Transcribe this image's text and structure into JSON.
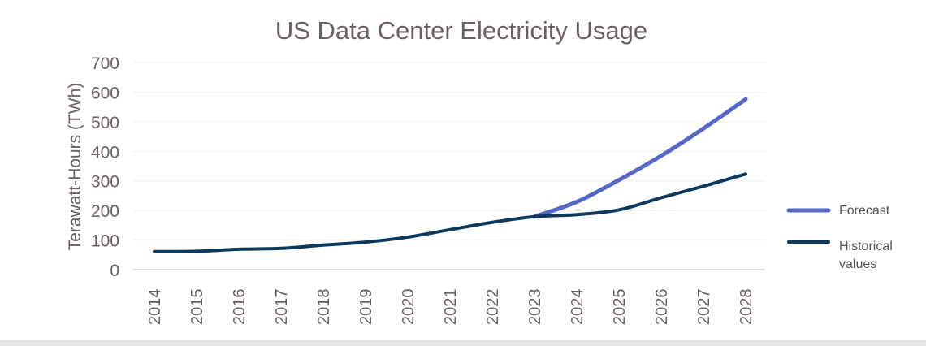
{
  "chart_data": {
    "type": "line",
    "title": "US Data Center Electricity Usage",
    "xlabel": "",
    "ylabel": "Terawatt-Hours (TWh)",
    "ylim": [
      0,
      700
    ],
    "yticks": [
      0,
      100,
      200,
      300,
      400,
      500,
      600,
      700
    ],
    "categories": [
      "2014",
      "2015",
      "2016",
      "2017",
      "2018",
      "2019",
      "2020",
      "2021",
      "2022",
      "2023",
      "2024",
      "2025",
      "2026",
      "2027",
      "2028"
    ],
    "grid": true,
    "legend_position": "right",
    "series": [
      {
        "name": "Forecast",
        "color": "#5568c8",
        "values": [
          null,
          null,
          null,
          null,
          null,
          null,
          null,
          null,
          null,
          179,
          229,
          303,
          385,
          477,
          576
        ]
      },
      {
        "name": "Historical values",
        "color": "#0d3a5c",
        "values": [
          61,
          62,
          69,
          72,
          83,
          93,
          110,
          135,
          160,
          179,
          186,
          202,
          243,
          282,
          323
        ]
      }
    ]
  }
}
